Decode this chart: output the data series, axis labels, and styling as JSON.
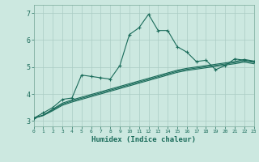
{
  "xlabel": "Humidex (Indice chaleur)",
  "xlim": [
    0,
    23
  ],
  "ylim": [
    2.8,
    7.3
  ],
  "xticks": [
    0,
    1,
    2,
    3,
    4,
    5,
    6,
    7,
    8,
    9,
    10,
    11,
    12,
    13,
    14,
    15,
    16,
    17,
    18,
    19,
    20,
    21,
    22,
    23
  ],
  "yticks": [
    3,
    4,
    5,
    6,
    7
  ],
  "bg_color": "#cce8e0",
  "grid_color": "#aaccC4",
  "line_color": "#1a6b5a",
  "series_jagged": [
    3.1,
    3.3,
    3.5,
    3.8,
    3.85,
    4.7,
    4.65,
    4.6,
    4.55,
    5.05,
    6.2,
    6.45,
    6.95,
    6.35,
    6.35,
    5.75,
    5.55,
    5.2,
    5.25,
    4.9,
    5.05,
    5.3,
    5.25,
    5.2
  ],
  "series_linear": [
    [
      3.1,
      3.22,
      3.44,
      3.66,
      3.78,
      3.88,
      3.98,
      4.08,
      4.18,
      4.28,
      4.38,
      4.48,
      4.58,
      4.68,
      4.78,
      4.88,
      4.95,
      5.0,
      5.05,
      5.1,
      5.15,
      5.2,
      5.28,
      5.22
    ],
    [
      3.1,
      3.21,
      3.41,
      3.62,
      3.74,
      3.84,
      3.94,
      4.04,
      4.14,
      4.24,
      4.34,
      4.44,
      4.54,
      4.64,
      4.74,
      4.84,
      4.91,
      4.96,
      5.01,
      5.06,
      5.11,
      5.16,
      5.23,
      5.17
    ],
    [
      3.1,
      3.2,
      3.38,
      3.58,
      3.7,
      3.8,
      3.9,
      4.0,
      4.1,
      4.2,
      4.3,
      4.4,
      4.5,
      4.6,
      4.7,
      4.8,
      4.87,
      4.92,
      4.97,
      5.02,
      5.07,
      5.12,
      5.18,
      5.12
    ]
  ]
}
